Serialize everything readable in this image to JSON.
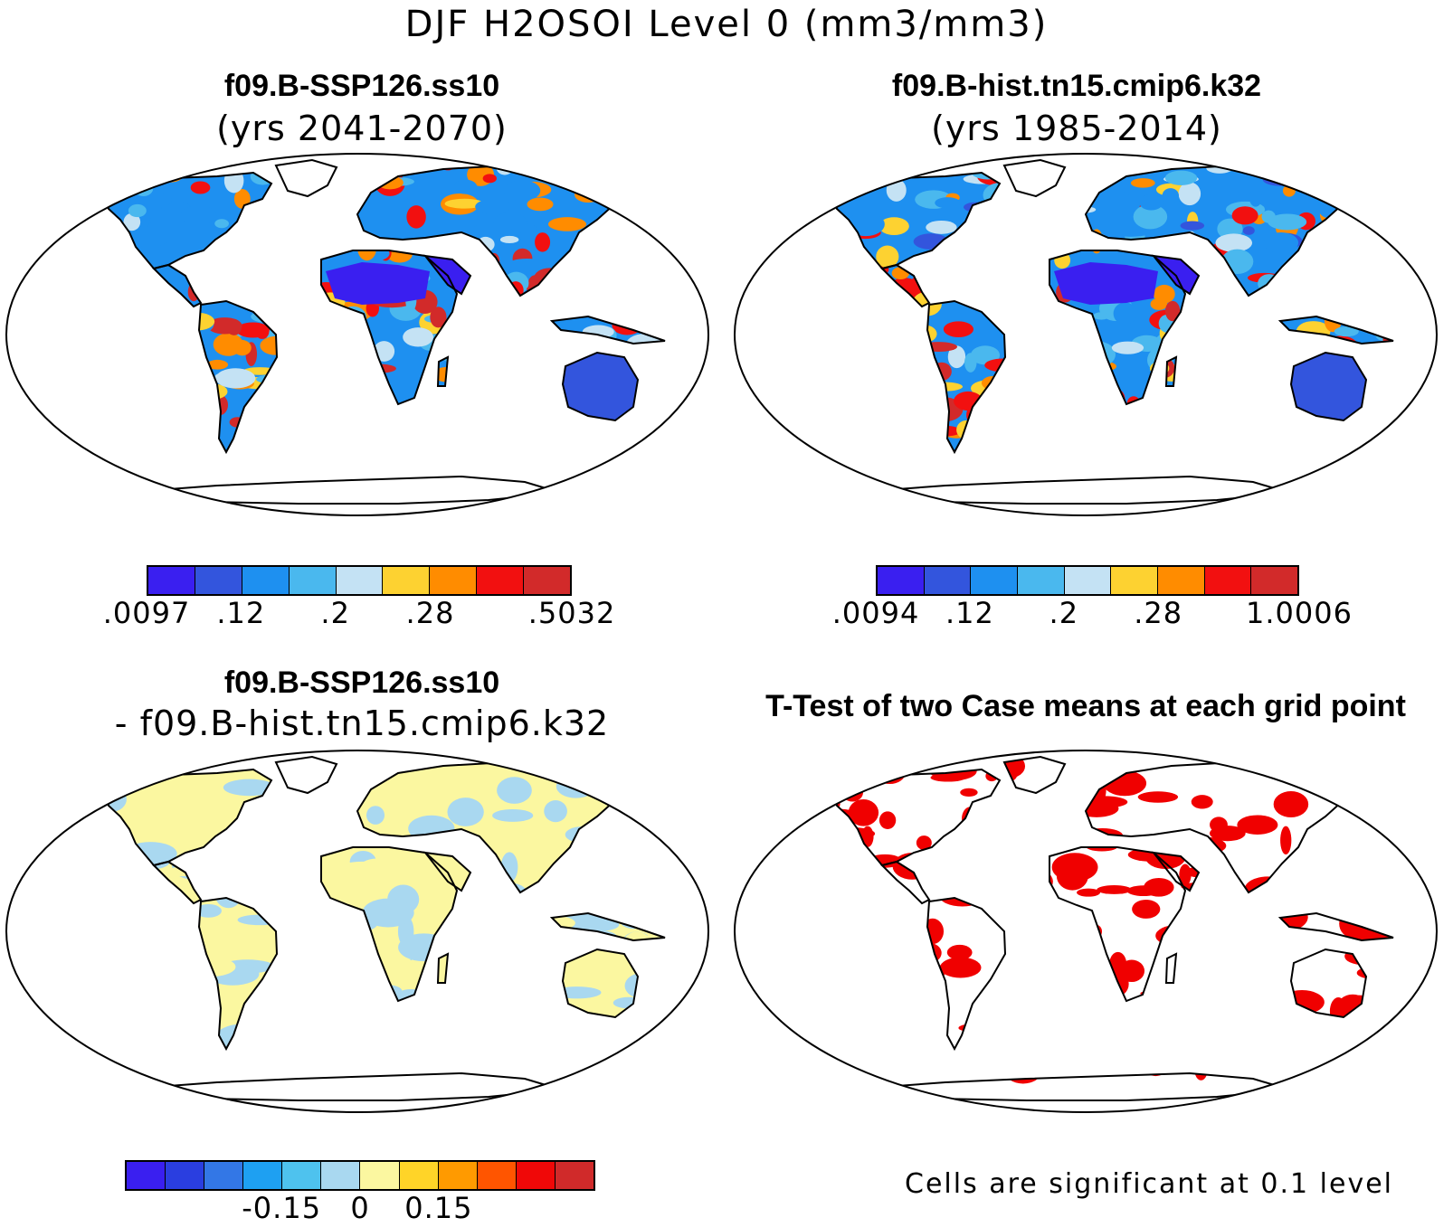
{
  "main_title": "DJF H2OSOI Level 0 (mm3/mm3)",
  "panels": {
    "top_left": {
      "title": "f09.B-SSP126.ss10",
      "subtitle": "(yrs 2041-2070)",
      "colorbar": {
        "colors": [
          "#3a1ff0",
          "#3355dd",
          "#1e90f0",
          "#4ab8ee",
          "#c4e2f4",
          "#fdd231",
          "#ff8c00",
          "#f21010",
          "#d22a2a"
        ],
        "labels": [
          ".0097",
          ".12",
          ".2",
          ".28",
          ".5032"
        ]
      }
    },
    "top_right": {
      "title": "f09.B-hist.tn15.cmip6.k32",
      "subtitle": "(yrs 1985-2014)",
      "colorbar": {
        "colors": [
          "#3a1ff0",
          "#3355dd",
          "#1e90f0",
          "#4ab8ee",
          "#c4e2f4",
          "#fdd231",
          "#ff8c00",
          "#f21010",
          "#d22a2a"
        ],
        "labels": [
          ".0094",
          ".12",
          ".2",
          ".28",
          "1.0006"
        ]
      }
    },
    "bottom_left": {
      "title": "f09.B-SSP126.ss10",
      "subtitle": "- f09.B-hist.tn15.cmip6.k32",
      "colorbar": {
        "colors": [
          "#3a1ff0",
          "#2a3ee0",
          "#3377e6",
          "#1ea0f2",
          "#4ec2ee",
          "#a9d8f0",
          "#fbf7a0",
          "#ffd428",
          "#ff9a00",
          "#ff5500",
          "#f00808",
          "#d02a2a"
        ],
        "labels": [
          "-0.15",
          "0",
          "0.15"
        ]
      }
    },
    "bottom_right": {
      "title": "T-Test of two Case means at each grid point",
      "note": "Cells are significant at 0.1 level",
      "significant_color": "#f00000"
    }
  }
}
